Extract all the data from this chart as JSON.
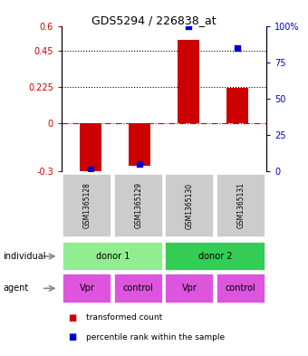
{
  "title": "GDS5294 / 226838_at",
  "samples": [
    "GSM1365128",
    "GSM1365129",
    "GSM1365130",
    "GSM1365131"
  ],
  "red_values": [
    -0.3,
    -0.27,
    0.52,
    0.22
  ],
  "blue_values_pct": [
    1,
    5,
    100,
    85
  ],
  "ylim_left": [
    -0.3,
    0.6
  ],
  "ylim_right": [
    0,
    100
  ],
  "yticks_left": [
    -0.3,
    0,
    0.225,
    0.45,
    0.6
  ],
  "yticks_right": [
    0,
    25,
    50,
    75,
    100
  ],
  "hlines": [
    0.225,
    0.45
  ],
  "zero_line": 0,
  "individual_groups": [
    {
      "label": "donor 1",
      "cols": [
        0,
        1
      ],
      "color": "#90EE90"
    },
    {
      "label": "donor 2",
      "cols": [
        2,
        3
      ],
      "color": "#33CC55"
    }
  ],
  "agents": [
    "Vpr",
    "control",
    "Vpr",
    "control"
  ],
  "agent_color": "#DD55DD",
  "sample_box_color": "#CCCCCC",
  "red_bar_color": "#CC0000",
  "blue_dot_color": "#0000CC",
  "legend_red": "transformed count",
  "legend_blue": "percentile rank within the sample",
  "left_label_color": "#CC0000",
  "right_label_color": "#0000CC",
  "arrow_color": "#888888"
}
